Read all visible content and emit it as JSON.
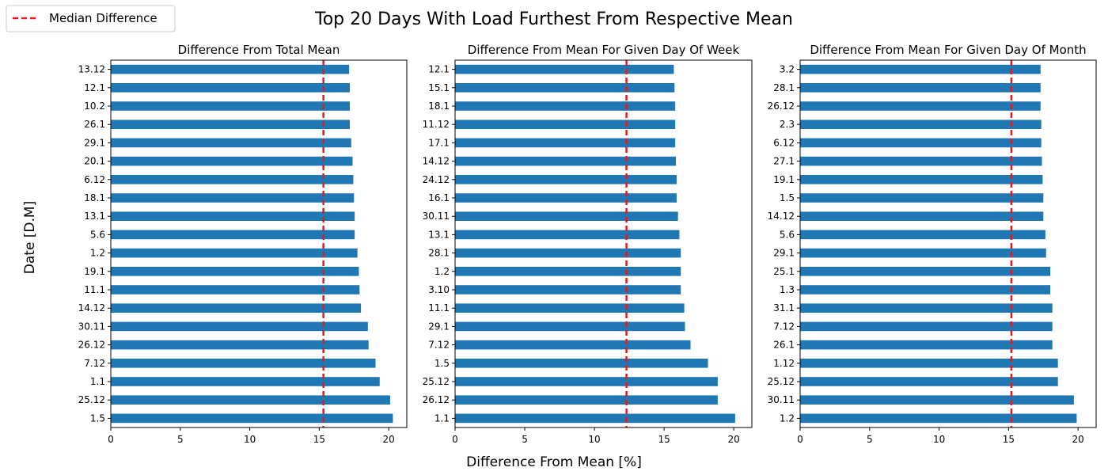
{
  "figure": {
    "title": "Top 20 Days With Load Furthest From Respective Mean",
    "xlabel": "Difference From Mean [%]",
    "ylabel": "Date [D.M]",
    "legend": {
      "label": "Median Difference",
      "placement": "top-left",
      "line_color": "#e41a1c",
      "line_style": "dashed"
    }
  },
  "colors": {
    "bar": "#1f77b4",
    "median": "#e41a1c"
  },
  "chart_data": [
    {
      "type": "bar",
      "orientation": "horizontal",
      "title": "Difference From Total Mean",
      "categories": [
        "1.5",
        "25.12",
        "1.1",
        "7.12",
        "26.12",
        "30.11",
        "14.12",
        "11.1",
        "19.1",
        "1.2",
        "5.6",
        "13.1",
        "18.1",
        "6.12",
        "20.1",
        "29.1",
        "26.1",
        "10.2",
        "12.1",
        "13.12"
      ],
      "values": [
        20.3,
        20.1,
        19.35,
        19.05,
        18.55,
        18.5,
        18.0,
        17.9,
        17.85,
        17.75,
        17.55,
        17.55,
        17.5,
        17.45,
        17.4,
        17.3,
        17.2,
        17.2,
        17.2,
        17.15
      ],
      "median": 15.3,
      "xlim": [
        0,
        21.3
      ],
      "xticks": [
        0,
        5,
        10,
        15,
        20
      ]
    },
    {
      "type": "bar",
      "orientation": "horizontal",
      "title": "Difference From Mean For Given Day Of Week",
      "categories": [
        "1.1",
        "26.12",
        "25.12",
        "1.5",
        "7.12",
        "29.1",
        "11.1",
        "3.10",
        "1.2",
        "28.1",
        "13.1",
        "30.11",
        "16.1",
        "24.12",
        "14.12",
        "17.1",
        "11.12",
        "18.1",
        "15.1",
        "12.1"
      ],
      "values": [
        20.1,
        18.85,
        18.85,
        18.15,
        16.9,
        16.5,
        16.45,
        16.2,
        16.2,
        16.2,
        16.1,
        16.0,
        15.9,
        15.9,
        15.85,
        15.8,
        15.8,
        15.8,
        15.75,
        15.7
      ],
      "median": 12.3,
      "xlim": [
        0,
        21.3
      ],
      "xticks": [
        0,
        5,
        10,
        15,
        20
      ]
    },
    {
      "type": "bar",
      "orientation": "horizontal",
      "title": "Difference From Mean For Given Day Of Month",
      "categories": [
        "1.2",
        "30.11",
        "25.12",
        "1.12",
        "26.1",
        "7.12",
        "31.1",
        "1.3",
        "25.1",
        "29.1",
        "5.6",
        "14.12",
        "1.5",
        "19.1",
        "27.1",
        "6.12",
        "2.3",
        "26.12",
        "28.1",
        "3.2"
      ],
      "values": [
        19.9,
        19.7,
        18.55,
        18.55,
        18.15,
        18.15,
        18.15,
        18.0,
        18.0,
        17.7,
        17.65,
        17.5,
        17.5,
        17.45,
        17.4,
        17.35,
        17.35,
        17.3,
        17.3,
        17.3
      ],
      "median": 15.2,
      "xlim": [
        0,
        21.3
      ],
      "xticks": [
        0,
        5,
        10,
        15,
        20
      ]
    }
  ]
}
